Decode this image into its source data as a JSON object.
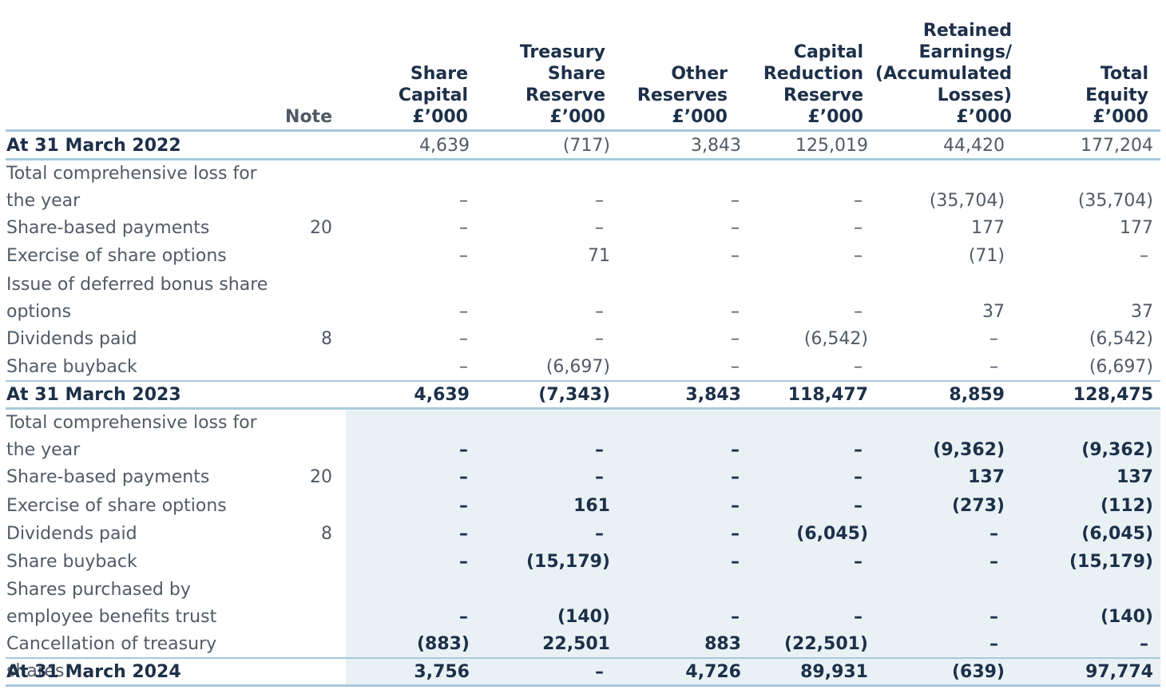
{
  "headers": {
    "note": [
      "Note"
    ],
    "share_capital": [
      "Share",
      "Capital",
      "£’000"
    ],
    "treasury": [
      "Treasury",
      "Share",
      "Reserve",
      "£’000"
    ],
    "other": [
      "Other",
      "Reserves",
      "£’000"
    ],
    "capital_reduction": [
      "Capital",
      "Reduction",
      "Reserve",
      "£’000"
    ],
    "retained": [
      "Retained",
      "Earnings/",
      "(Accumulated",
      "Losses)",
      "£’000"
    ],
    "total": [
      "Total",
      "Equity",
      "£’000"
    ]
  },
  "rows": [
    {
      "label": "At 31 March 2022",
      "note": "",
      "values": [
        "4,639",
        "(717)",
        "3,843",
        "125,019",
        "44,420",
        "177,204"
      ]
    },
    {
      "label": "Total comprehensive loss for the year",
      "note": "",
      "values": [
        "–",
        "–",
        "–",
        "–",
        "(35,704)",
        "(35,704)"
      ]
    },
    {
      "label": "Share-based payments",
      "note": "20",
      "values": [
        "–",
        "–",
        "–",
        "–",
        "177",
        "177"
      ]
    },
    {
      "label": "Exercise of share options",
      "note": "",
      "values": [
        "–",
        "71",
        "–",
        "–",
        "(71)",
        "–"
      ]
    },
    {
      "label": "Issue of deferred bonus share options",
      "note": "",
      "values": [
        "–",
        "–",
        "–",
        "–",
        "37",
        "37"
      ]
    },
    {
      "label": "Dividends paid",
      "note": "8",
      "values": [
        "–",
        "–",
        "–",
        "(6,542)",
        "–",
        "(6,542)"
      ]
    },
    {
      "label": "Share buyback",
      "note": "",
      "values": [
        "–",
        "(6,697)",
        "–",
        "–",
        "–",
        "(6,697)"
      ]
    },
    {
      "label": "At 31 March 2023",
      "note": "",
      "values": [
        "4,639",
        "(7,343)",
        "3,843",
        "118,477",
        "8,859",
        "128,475"
      ]
    },
    {
      "label": "Total comprehensive loss for the year",
      "note": "",
      "values": [
        "–",
        "–",
        "–",
        "–",
        "(9,362)",
        "(9,362)"
      ]
    },
    {
      "label": "Share-based payments",
      "note": "20",
      "values": [
        "–",
        "–",
        "–",
        "–",
        "137",
        "137"
      ]
    },
    {
      "label": "Exercise of share options",
      "note": "",
      "values": [
        "–",
        "161",
        "–",
        "–",
        "(273)",
        "(112)"
      ]
    },
    {
      "label": "Dividends paid",
      "note": "8",
      "values": [
        "–",
        "–",
        "–",
        "(6,045)",
        "–",
        "(6,045)"
      ]
    },
    {
      "label": "Share buyback",
      "note": "",
      "values": [
        "–",
        "(15,179)",
        "–",
        "–",
        "–",
        "(15,179)"
      ]
    },
    {
      "label": "Shares purchased by employee benefits trust",
      "note": "",
      "values": [
        "–",
        "(140)",
        "–",
        "–",
        "–",
        "(140)"
      ]
    },
    {
      "label": "Cancellation of treasury shares",
      "note": "",
      "values": [
        "(883)",
        "22,501",
        "883",
        "(22,501)",
        "–",
        "–"
      ]
    },
    {
      "label": "At 31 March 2024",
      "note": "",
      "values": [
        "3,756",
        "–",
        "4,726",
        "89,931",
        "(639)",
        "97,774"
      ]
    }
  ]
}
